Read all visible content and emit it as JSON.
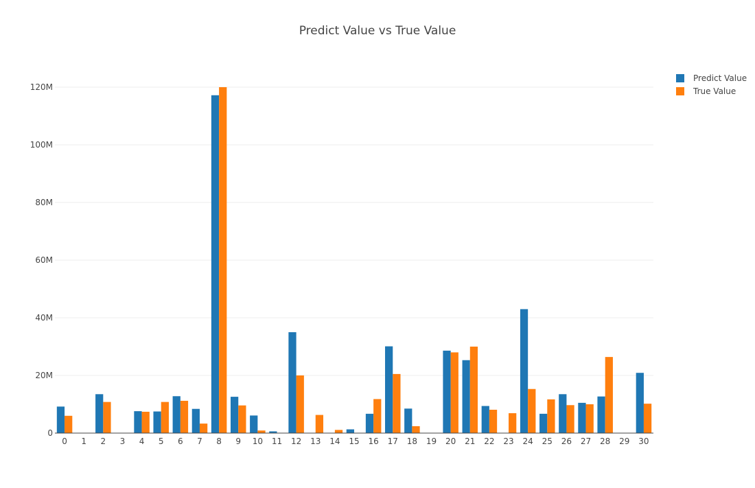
{
  "chart_data": {
    "type": "bar",
    "title": "Predict Value vs True Value",
    "xlabel": "",
    "ylabel": "",
    "categories": [
      "0",
      "1",
      "2",
      "3",
      "4",
      "5",
      "6",
      "7",
      "8",
      "9",
      "10",
      "11",
      "12",
      "13",
      "14",
      "15",
      "16",
      "17",
      "18",
      "19",
      "20",
      "21",
      "22",
      "23",
      "24",
      "25",
      "26",
      "27",
      "28",
      "29",
      "30"
    ],
    "ylim": [
      0,
      120000000
    ],
    "yticks": [
      0,
      20000000,
      40000000,
      60000000,
      80000000,
      100000000,
      120000000
    ],
    "ytick_labels": [
      "0",
      "20M",
      "40M",
      "60M",
      "80M",
      "100M",
      "120M"
    ],
    "grid": true,
    "legend_position": "top-right",
    "series": [
      {
        "name": "Predict Value",
        "color": "#1f77b4",
        "values": [
          9200000,
          0,
          13500000,
          0,
          7600000,
          7500000,
          12800000,
          8400000,
          117200000,
          12600000,
          6100000,
          600000,
          35000000,
          0,
          0,
          1300000,
          6700000,
          30100000,
          8500000,
          0,
          28600000,
          25300000,
          9400000,
          0,
          43000000,
          6700000,
          13500000,
          10500000,
          12700000,
          0,
          20900000
        ]
      },
      {
        "name": "True Value",
        "color": "#ff7f0e",
        "values": [
          6000000,
          0,
          10800000,
          0,
          7400000,
          10800000,
          11200000,
          3300000,
          120000000,
          9600000,
          900000,
          0,
          20000000,
          6300000,
          1100000,
          0,
          11800000,
          20500000,
          2400000,
          0,
          28000000,
          30000000,
          8100000,
          6900000,
          15300000,
          11700000,
          9700000,
          10000000,
          26400000,
          0,
          10200000
        ]
      }
    ]
  }
}
